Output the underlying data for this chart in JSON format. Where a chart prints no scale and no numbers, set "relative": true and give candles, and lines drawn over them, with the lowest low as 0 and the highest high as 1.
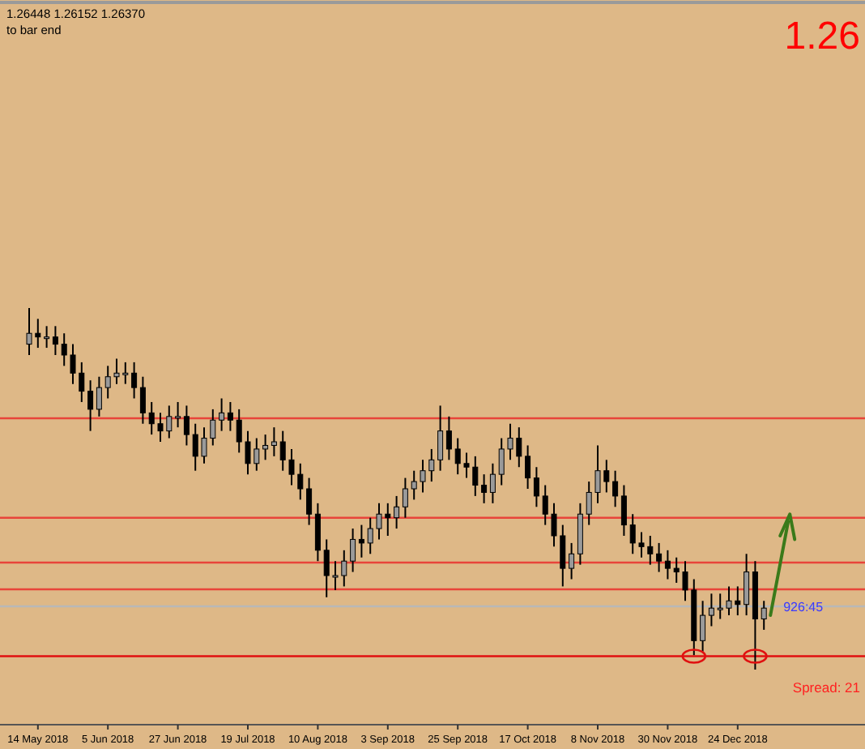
{
  "chart_data": {
    "type": "candlestick",
    "relative": true,
    "categories": [
      null,
      "14 May 2018",
      null,
      null,
      null,
      null,
      null,
      null,
      null,
      "5 Jun 2018",
      null,
      null,
      null,
      null,
      null,
      null,
      null,
      "27 Jun 2018",
      null,
      null,
      null,
      null,
      null,
      null,
      null,
      "19 Jul 2018",
      null,
      null,
      null,
      null,
      null,
      null,
      null,
      "10 Aug 2018",
      null,
      null,
      null,
      null,
      null,
      null,
      null,
      "3 Sep 2018",
      null,
      null,
      null,
      null,
      null,
      null,
      null,
      "25 Sep 2018",
      null,
      null,
      null,
      null,
      null,
      null,
      null,
      "17 Oct 2018",
      null,
      null,
      null,
      null,
      null,
      null,
      null,
      "8 Nov 2018",
      null,
      null,
      null,
      null,
      null,
      null,
      null,
      "30 Nov 2018",
      null,
      null,
      null,
      null,
      null,
      null,
      null,
      "24 Dec 2018",
      null,
      null,
      null
    ],
    "ohlc": [
      [
        0.9,
        1.0,
        0.87,
        0.93
      ],
      [
        0.93,
        0.97,
        0.89,
        0.92
      ],
      [
        0.92,
        0.95,
        0.89,
        0.92
      ],
      [
        0.92,
        0.95,
        0.87,
        0.9
      ],
      [
        0.9,
        0.93,
        0.84,
        0.87
      ],
      [
        0.87,
        0.9,
        0.79,
        0.82
      ],
      [
        0.82,
        0.85,
        0.74,
        0.77
      ],
      [
        0.77,
        0.8,
        0.66,
        0.72
      ],
      [
        0.72,
        0.81,
        0.7,
        0.78
      ],
      [
        0.78,
        0.84,
        0.75,
        0.81
      ],
      [
        0.81,
        0.86,
        0.79,
        0.82
      ],
      [
        0.82,
        0.85,
        0.79,
        0.82
      ],
      [
        0.82,
        0.85,
        0.75,
        0.78
      ],
      [
        0.78,
        0.81,
        0.68,
        0.71
      ],
      [
        0.71,
        0.74,
        0.65,
        0.68
      ],
      [
        0.68,
        0.71,
        0.63,
        0.66
      ],
      [
        0.66,
        0.73,
        0.64,
        0.7
      ],
      [
        0.7,
        0.74,
        0.67,
        0.7
      ],
      [
        0.7,
        0.73,
        0.62,
        0.65
      ],
      [
        0.65,
        0.68,
        0.55,
        0.59
      ],
      [
        0.59,
        0.67,
        0.57,
        0.64
      ],
      [
        0.64,
        0.72,
        0.62,
        0.69
      ],
      [
        0.69,
        0.75,
        0.66,
        0.71
      ],
      [
        0.71,
        0.74,
        0.66,
        0.69
      ],
      [
        0.69,
        0.72,
        0.6,
        0.63
      ],
      [
        0.63,
        0.66,
        0.54,
        0.57
      ],
      [
        0.57,
        0.64,
        0.55,
        0.61
      ],
      [
        0.61,
        0.65,
        0.58,
        0.62
      ],
      [
        0.62,
        0.67,
        0.59,
        0.63
      ],
      [
        0.63,
        0.66,
        0.55,
        0.58
      ],
      [
        0.58,
        0.61,
        0.51,
        0.54
      ],
      [
        0.54,
        0.57,
        0.47,
        0.5
      ],
      [
        0.5,
        0.53,
        0.4,
        0.43
      ],
      [
        0.43,
        0.46,
        0.3,
        0.33
      ],
      [
        0.33,
        0.36,
        0.2,
        0.26
      ],
      [
        0.26,
        0.3,
        0.22,
        0.26
      ],
      [
        0.26,
        0.33,
        0.23,
        0.3
      ],
      [
        0.3,
        0.39,
        0.27,
        0.36
      ],
      [
        0.36,
        0.4,
        0.31,
        0.35
      ],
      [
        0.35,
        0.42,
        0.32,
        0.39
      ],
      [
        0.39,
        0.46,
        0.36,
        0.43
      ],
      [
        0.43,
        0.46,
        0.37,
        0.42
      ],
      [
        0.42,
        0.48,
        0.39,
        0.45
      ],
      [
        0.45,
        0.53,
        0.42,
        0.5
      ],
      [
        0.5,
        0.55,
        0.47,
        0.52
      ],
      [
        0.52,
        0.58,
        0.49,
        0.55
      ],
      [
        0.55,
        0.61,
        0.52,
        0.58
      ],
      [
        0.58,
        0.73,
        0.55,
        0.66
      ],
      [
        0.66,
        0.7,
        0.58,
        0.61
      ],
      [
        0.61,
        0.64,
        0.54,
        0.57
      ],
      [
        0.57,
        0.6,
        0.53,
        0.56
      ],
      [
        0.56,
        0.59,
        0.48,
        0.51
      ],
      [
        0.51,
        0.54,
        0.46,
        0.49
      ],
      [
        0.49,
        0.57,
        0.46,
        0.54
      ],
      [
        0.54,
        0.64,
        0.51,
        0.61
      ],
      [
        0.61,
        0.68,
        0.58,
        0.64
      ],
      [
        0.64,
        0.67,
        0.56,
        0.59
      ],
      [
        0.59,
        0.62,
        0.5,
        0.53
      ],
      [
        0.53,
        0.56,
        0.45,
        0.48
      ],
      [
        0.48,
        0.51,
        0.4,
        0.43
      ],
      [
        0.43,
        0.46,
        0.34,
        0.37
      ],
      [
        0.37,
        0.4,
        0.23,
        0.28
      ],
      [
        0.28,
        0.35,
        0.25,
        0.32
      ],
      [
        0.32,
        0.46,
        0.29,
        0.43
      ],
      [
        0.43,
        0.52,
        0.4,
        0.49
      ],
      [
        0.49,
        0.62,
        0.46,
        0.55
      ],
      [
        0.55,
        0.58,
        0.49,
        0.52
      ],
      [
        0.52,
        0.55,
        0.45,
        0.48
      ],
      [
        0.48,
        0.51,
        0.37,
        0.4
      ],
      [
        0.4,
        0.43,
        0.32,
        0.35
      ],
      [
        0.35,
        0.38,
        0.31,
        0.34
      ],
      [
        0.34,
        0.37,
        0.29,
        0.32
      ],
      [
        0.32,
        0.35,
        0.27,
        0.3
      ],
      [
        0.3,
        0.33,
        0.25,
        0.28
      ],
      [
        0.28,
        0.31,
        0.24,
        0.27
      ],
      [
        0.27,
        0.3,
        0.19,
        0.22
      ],
      [
        0.22,
        0.25,
        0.04,
        0.08
      ],
      [
        0.08,
        0.19,
        0.05,
        0.15
      ],
      [
        0.15,
        0.21,
        0.12,
        0.17
      ],
      [
        0.17,
        0.21,
        0.14,
        0.17
      ],
      [
        0.17,
        0.23,
        0.15,
        0.19
      ],
      [
        0.19,
        0.23,
        0.15,
        0.18
      ],
      [
        0.18,
        0.32,
        0.15,
        0.27
      ],
      [
        0.27,
        0.3,
        0.0,
        0.14
      ],
      [
        0.14,
        0.19,
        0.11,
        0.17
      ]
    ],
    "ref_lines": [
      {
        "axis": "y",
        "value": 0.695,
        "color": "#e8443a"
      },
      {
        "axis": "y",
        "value": 0.42,
        "color": "#e8443a"
      },
      {
        "axis": "y",
        "value": 0.296,
        "color": "#e8443a"
      },
      {
        "axis": "y",
        "value": 0.222,
        "color": "#e8443a"
      },
      {
        "axis": "y",
        "value": 0.175,
        "color": "#b8b8b8"
      },
      {
        "axis": "y",
        "value": 0.037,
        "color": "#e01010"
      }
    ],
    "annotations": [
      "1.26448 1.26152 1.26370",
      "to bar end",
      "1.26",
      "Spread: 21",
      "926:45"
    ]
  }
}
